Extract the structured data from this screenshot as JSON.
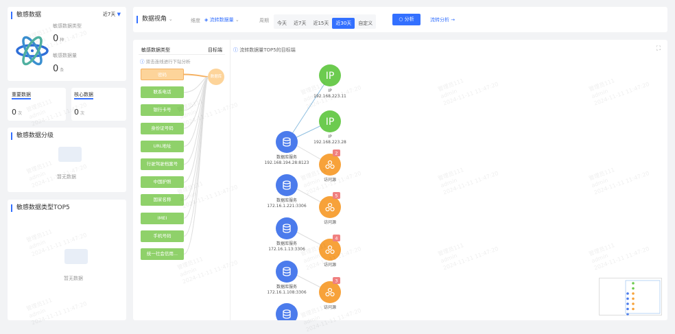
{
  "summary": {
    "title": "敏感数据",
    "period": "近7天",
    "type_label": "敏感数据类型",
    "type_value": "0",
    "type_unit": "种",
    "count_label": "敏感数据量",
    "count_value": "0",
    "count_unit": "条"
  },
  "important": {
    "label": "重要数据",
    "value": "0",
    "unit": "次"
  },
  "core": {
    "label": "核心数据",
    "value": "0",
    "unit": "次"
  },
  "grading": {
    "title": "敏感数据分级",
    "empty": "暂无数据"
  },
  "top5": {
    "title": "敏感数据类型TOP5",
    "empty": "暂无数据"
  },
  "toolbar": {
    "view": "数据视角",
    "dimension_label": "维度",
    "dimension_value": "流转数据量",
    "time_label": "周期",
    "time_options": [
      "今天",
      "近7天",
      "近15天",
      "近30天",
      "自定义"
    ],
    "time_selected": "近30天",
    "analyze": "分析",
    "flow_link": "流转分析 →"
  },
  "left_panel": {
    "col1": "敏感数据类型",
    "col2": "目标端",
    "hint": "双击连线进行下钻分析",
    "target": "数据库",
    "types": [
      "密码",
      "联系电话",
      "银行卡号",
      "身份证号码",
      "URL地址",
      "行驶驾驶档案号",
      "中国护照",
      "国家名称",
      "IMEI",
      "手机号码",
      "统一社会信用..."
    ],
    "selected": "密码"
  },
  "graph": {
    "title": "流转数据量TOP5的目标端",
    "ip_nodes": [
      {
        "label": "IP",
        "name": "IP",
        "addr": "192.168.223.11"
      },
      {
        "label": "IP",
        "name": "IP",
        "addr": "192.168.223.28"
      }
    ],
    "db_nodes": [
      {
        "name": "数据库服务",
        "addr": "192.168.194.28:8123"
      },
      {
        "name": "数据库服务",
        "addr": "172.16.1.221:3306"
      },
      {
        "name": "数据库服务",
        "addr": "172.16.1.13:3306"
      },
      {
        "name": "数据库服务",
        "addr": "172.16.1.108:3306"
      }
    ],
    "src_nodes": [
      {
        "name": "访问源",
        "badge": "2"
      },
      {
        "name": "访问源",
        "badge": "5"
      },
      {
        "name": "访问源",
        "badge": "4"
      },
      {
        "name": "访问源",
        "badge": "3"
      }
    ],
    "colors": {
      "ip": "#6ccb4f",
      "db": "#4b7bec",
      "src": "#f7a23a",
      "badge": "#f08080"
    }
  },
  "watermark": "管理员111\nadmin\n2024-11-11 11:47:20"
}
